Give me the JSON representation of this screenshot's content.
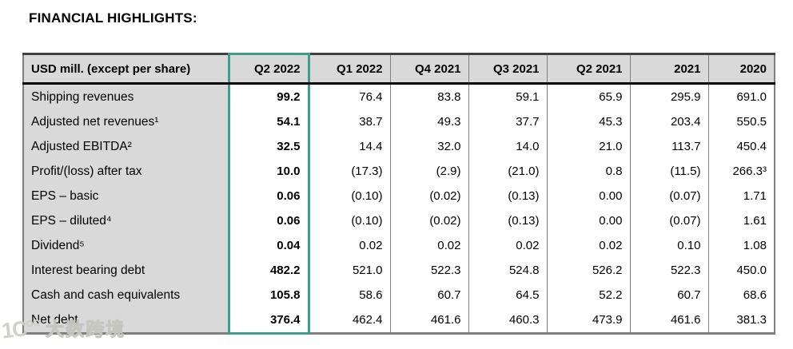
{
  "title": "FINANCIAL HIGHLIGHTS:",
  "table": {
    "header": [
      "USD mill. (except per share)",
      "Q2 2022",
      "Q1 2022",
      "Q4 2021",
      "Q3 2021",
      "Q2 2021",
      "2021",
      "2020"
    ],
    "highlight_column": "Q2 2022",
    "rows": [
      {
        "label": "Shipping revenues",
        "values": [
          "99.2",
          "76.4",
          "83.8",
          "59.1",
          "65.9",
          "295.9",
          "691.0"
        ]
      },
      {
        "label": "Adjusted net revenues¹",
        "values": [
          "54.1",
          "38.7",
          "49.3",
          "37.7",
          "45.3",
          "203.4",
          "550.5"
        ]
      },
      {
        "label": "Adjusted EBITDA²",
        "values": [
          "32.5",
          "14.4",
          "32.0",
          "14.0",
          "21.0",
          "113.7",
          "450.4"
        ]
      },
      {
        "label": "Profit/(loss) after tax",
        "values": [
          "10.0",
          "(17.3)",
          "(2.9)",
          "(21.0)",
          "0.8",
          "(11.5)",
          "266.3³"
        ]
      },
      {
        "label": "EPS – basic",
        "values": [
          "0.06",
          "(0.10)",
          "(0.02)",
          "(0.13)",
          "0.00",
          "(0.07)",
          "1.71"
        ]
      },
      {
        "label": "EPS – diluted⁴",
        "values": [
          "0.06",
          "(0.10)",
          "(0.02)",
          "(0.13)",
          "0.00",
          "(0.07)",
          "1.61"
        ]
      },
      {
        "label": "Dividend⁵",
        "values": [
          "0.04",
          "0.02",
          "0.02",
          "0.02",
          "0.02",
          "0.10",
          "1.08"
        ]
      },
      {
        "label": "Interest bearing debt",
        "values": [
          "482.2",
          "521.0",
          "522.3",
          "524.8",
          "526.2",
          "522.3",
          "450.0"
        ]
      },
      {
        "label": "Cash and cash equivalents",
        "values": [
          "105.8",
          "58.6",
          "60.7",
          "64.5",
          "52.2",
          "60.7",
          "68.6"
        ]
      },
      {
        "label": "Net debt",
        "values": [
          "376.4",
          "462.4",
          "461.6",
          "460.3",
          "473.9",
          "461.6",
          "381.3"
        ]
      }
    ]
  },
  "colors": {
    "highlight_border": "#3d9e90",
    "header_background": "#d9d9d9",
    "grid_line": "#808080"
  },
  "watermark": {
    "logo": "1C°°",
    "text": "大数跨境"
  }
}
